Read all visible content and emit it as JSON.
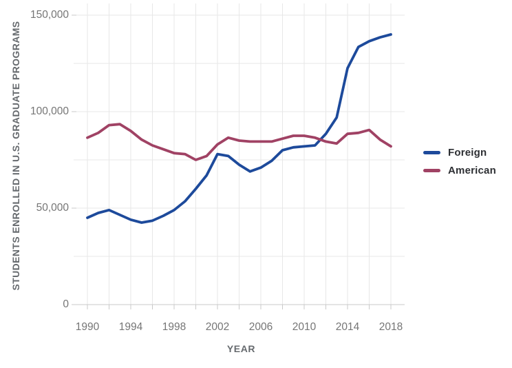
{
  "chart_data": {
    "type": "line",
    "title": "",
    "xlabel": "YEAR",
    "ylabel": "STUDENTS ENROLLED IN U.S. GRADUATE PROGRAMS",
    "years": [
      1990,
      1991,
      1992,
      1993,
      1994,
      1995,
      1996,
      1997,
      1998,
      1999,
      2000,
      2001,
      2002,
      2003,
      2004,
      2005,
      2006,
      2007,
      2008,
      2009,
      2010,
      2011,
      2012,
      2013,
      2014,
      2015,
      2016,
      2017,
      2018
    ],
    "series": [
      {
        "name": "Foreign",
        "color": "#1d4a9b",
        "values": [
          45000,
          47500,
          49000,
          46500,
          44000,
          42500,
          43500,
          46000,
          49000,
          53500,
          60000,
          67000,
          78000,
          77000,
          72500,
          69000,
          71000,
          74500,
          80000,
          81500,
          82000,
          82500,
          88500,
          97000,
          122500,
          133500,
          136500,
          138500,
          140000
        ]
      },
      {
        "name": "American",
        "color": "#a04264",
        "values": [
          86500,
          89000,
          93000,
          93500,
          90000,
          85500,
          82500,
          80500,
          78500,
          78000,
          75000,
          77000,
          83000,
          86500,
          85000,
          84500,
          84500,
          84500,
          86000,
          87500,
          87500,
          86500,
          84500,
          83500,
          88500,
          89000,
          90500,
          85500,
          82000
        ]
      }
    ],
    "x_axis": {
      "tick_years": [
        1990,
        1992,
        1994,
        1996,
        1998,
        2000,
        2002,
        2004,
        2006,
        2008,
        2010,
        2012,
        2014,
        2016,
        2018
      ],
      "label_years": [
        "1990",
        "1994",
        "1998",
        "2002",
        "2006",
        "2010",
        "2014",
        "2018"
      ]
    },
    "y_axis": {
      "min": 0,
      "max": 150000,
      "grid_step": 25000,
      "label_step": 50000,
      "tick_values": [
        0,
        50000,
        100000,
        150000
      ],
      "tick_labels": [
        "0",
        "50,000",
        "100,000",
        "150,000"
      ]
    },
    "legend": {
      "position": "right",
      "entries": [
        "Foreign",
        "American"
      ]
    },
    "grid": "on"
  },
  "colors": {
    "foreign_line": "#1d4a9b",
    "american_line": "#a04264",
    "gridline": "#e7e7e7",
    "axis_line": "#c9c9c9",
    "tick_text": "#757575",
    "axis_title_text": "#666a6e",
    "legend_text": "#2d2f33",
    "background": "#ffffff"
  }
}
